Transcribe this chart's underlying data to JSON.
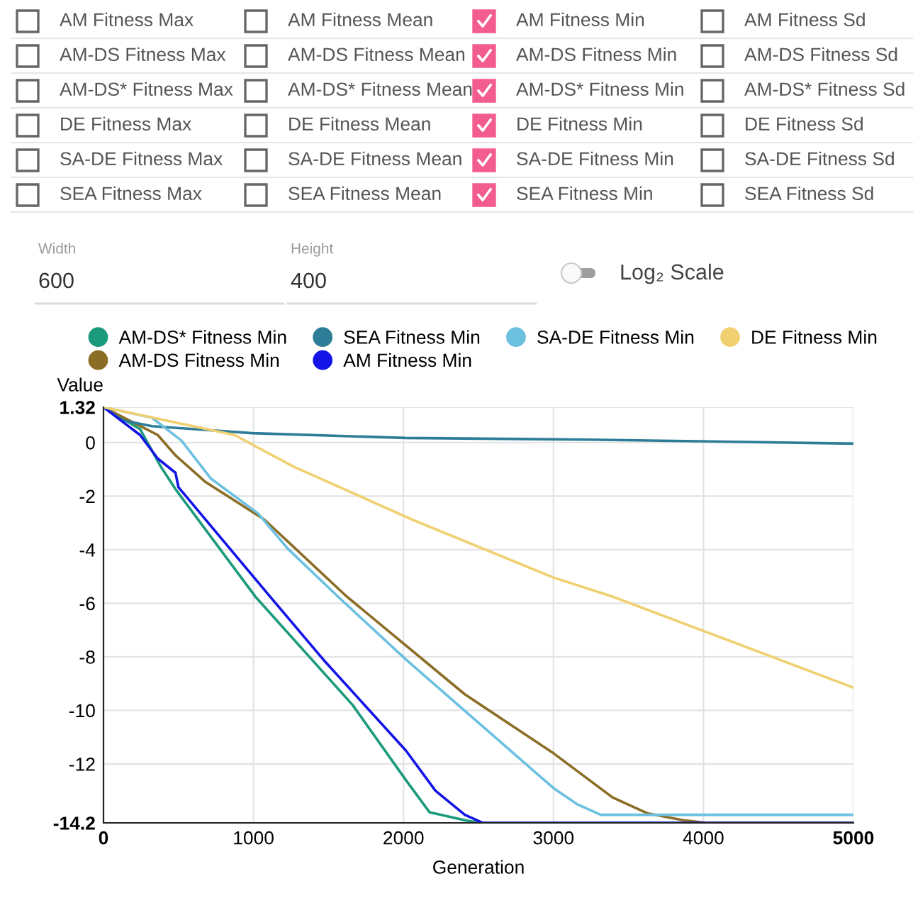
{
  "chart_data": [
    {
      "type": "other",
      "categories": [
        "AM Fitness Max",
        "AM Fitness Mean",
        "AM Fitness Min",
        "AM Fitness Sd",
        "AM-DS Fitness Max",
        "AM-DS Fitness Mean",
        "AM-DS Fitness Min",
        "AM-DS Fitness Sd",
        "AM-DS* Fitness Max",
        "AM-DS* Fitness Mean",
        "AM-DS* Fitness Min",
        "AM-DS* Fitness Sd",
        "DE Fitness Max",
        "DE Fitness Mean",
        "DE Fitness Min",
        "DE Fitness Sd",
        "SA-DE Fitness Max",
        "SA-DE Fitness Mean",
        "SA-DE Fitness Min",
        "SA-DE Fitness Sd",
        "SEA Fitness Max",
        "SEA Fitness Mean",
        "SEA Fitness Min",
        "SEA Fitness Sd"
      ],
      "colors": [
        "#ffffff",
        "#ffffff",
        "#f25c8e",
        "#ffffff",
        "#ffffff",
        "#ffffff",
        "#f25c8e",
        "#ffffff",
        "#ffffff",
        "#ffffff",
        "#f25c8e",
        "#ffffff",
        "#ffffff",
        "#ffffff",
        "#f25c8e",
        "#ffffff",
        "#ffffff",
        "#ffffff",
        "#f25c8e",
        "#ffffff",
        "#ffffff",
        "#ffffff",
        "#f25c8e",
        "#ffffff"
      ],
      "annotations": [
        "Width",
        "600",
        "Height",
        "400",
        "Log₂ Scale"
      ]
    },
    {
      "type": "line",
      "xlabel": "Generation",
      "ylabel": "Value",
      "xlim": [
        0,
        5000
      ],
      "xticks": [
        0,
        1000,
        2000,
        3000,
        4000,
        5000
      ],
      "ylim": [
        -14.2,
        1.32
      ],
      "yticks": [
        {
          "value": -14.2,
          "label": "-14.2"
        },
        -12,
        -10,
        -8,
        -6,
        -4,
        -2,
        0,
        {
          "value": 1.32,
          "label": "1.32"
        }
      ],
      "grid": true,
      "legend": "top",
      "marker": "none",
      "line_style": "solid",
      "series": [
        {
          "name": "AM-DS* Fitness Min",
          "color": "#1b9a7c",
          "x": [
            0,
            244,
            382,
            480,
            1012,
            1661,
            2016,
            2173,
            2409,
            2508,
            5000
          ],
          "values": [
            1.32,
            0.5,
            -0.9,
            -1.74,
            -5.75,
            -9.8,
            -12.6,
            -13.8,
            -14.1,
            -14.2,
            -14.2
          ]
        },
        {
          "name": "AM-DS Fitness Min",
          "color": "#8b6d25",
          "x": [
            0,
            362,
            480,
            677,
            1071,
            1622,
            2409,
            3000,
            3394,
            3630,
            3866,
            4024,
            5000
          ],
          "values": [
            1.32,
            0.28,
            -0.48,
            -1.46,
            -2.87,
            -5.75,
            -9.4,
            -11.6,
            -13.25,
            -13.85,
            -14.1,
            -14.2,
            -14.2
          ]
        },
        {
          "name": "SEA Fitness Min",
          "color": "#2e7d98",
          "x": [
            0,
            126,
            323,
            992,
            2016,
            3236,
            5000
          ],
          "values": [
            1.32,
            0.83,
            0.61,
            0.35,
            0.17,
            0.11,
            -0.04
          ]
        },
        {
          "name": "AM Fitness Min",
          "color": "#1414e6",
          "x": [
            0,
            244,
            362,
            480,
            500,
            1110,
            1465,
            2016,
            2213,
            2409,
            2528,
            5000
          ],
          "values": [
            1.32,
            0.28,
            -0.6,
            -1.13,
            -1.67,
            -5.75,
            -8.1,
            -11.5,
            -13.0,
            -13.9,
            -14.2,
            -14.2
          ]
        },
        {
          "name": "SA-DE Fitness Min",
          "color": "#6cc0e0",
          "x": [
            0,
            323,
            520,
            717,
            1031,
            1228,
            1563,
            2016,
            3000,
            3157,
            3315,
            5000
          ],
          "values": [
            1.32,
            0.93,
            0.07,
            -1.35,
            -2.65,
            -3.96,
            -5.75,
            -8.1,
            -12.9,
            -13.5,
            -13.9,
            -13.9
          ]
        },
        {
          "name": "DE Fitness Min",
          "color": "#f0d070",
          "x": [
            0,
            874,
            1268,
            2055,
            3000,
            3394,
            5000
          ],
          "values": [
            1.32,
            0.28,
            -0.9,
            -2.87,
            -5.04,
            -5.75,
            -9.15
          ]
        }
      ]
    }
  ]
}
